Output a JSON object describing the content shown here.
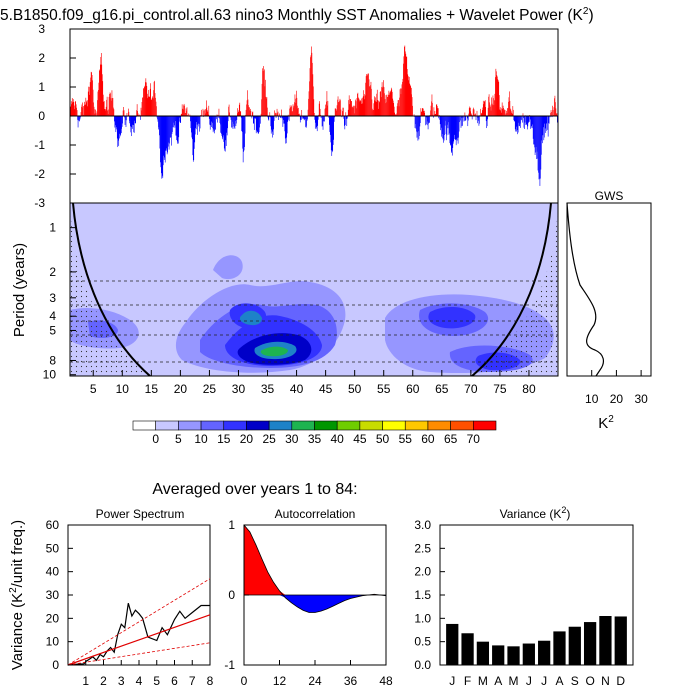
{
  "title": "5.B1850.f09_g16.pi_control.all.63 nino3 Monthly SST Anomalies + Wavelet Power (K",
  "title_sup": "2",
  "title_close": ")",
  "anomaly": {
    "yticks": [
      "3",
      "2",
      "1",
      "0",
      "-1",
      "-2",
      "-3"
    ],
    "ylim": [
      -3,
      3
    ],
    "pos_color": "#ff0000",
    "neg_color": "#0000ff"
  },
  "wavelet": {
    "ylabel": "Period (years)",
    "yticks": [
      "1",
      "2",
      "3",
      "4",
      "5",
      "8",
      "10"
    ],
    "xticks": [
      "5",
      "10",
      "15",
      "20",
      "25",
      "30",
      "35",
      "40",
      "45",
      "50",
      "55",
      "60",
      "65",
      "70",
      "75",
      "80"
    ],
    "xlim": [
      1,
      85
    ]
  },
  "gws": {
    "title": "GWS",
    "xticks": [
      "10",
      "20",
      "30"
    ],
    "xlabel": "K",
    "xlabel_sup": "2"
  },
  "colorbar": {
    "labels": [
      "0",
      "5",
      "10",
      "15",
      "20",
      "25",
      "30",
      "35",
      "40",
      "45",
      "50",
      "55",
      "60",
      "65",
      "70"
    ],
    "colors": [
      "#ffffff",
      "#c8c8ff",
      "#9696ff",
      "#6464ff",
      "#3232ff",
      "#0000c8",
      "#1e82c8",
      "#1eb450",
      "#009600",
      "#6ecd00",
      "#c8dc00",
      "#ffff00",
      "#ffc800",
      "#ff8c00",
      "#ff5000",
      "#ff0000"
    ]
  },
  "averaged_title": "Averaged over years 1 to 84:",
  "chart_data": [
    {
      "type": "line",
      "title": "Power Spectrum",
      "ylabel": "Variance (K",
      "ylabel_sup": "2",
      "ylabel_tail": "/unit freq.)",
      "yticks": [
        "0",
        "10",
        "20",
        "30",
        "40",
        "50",
        "60"
      ],
      "xticks": [
        "1",
        "2",
        "3",
        "4",
        "5",
        "6",
        "7",
        "8"
      ],
      "ylim": [
        0,
        60
      ],
      "xlim": [
        0,
        8
      ],
      "series": [
        {
          "values_x": [
            0,
            0.3,
            0.6,
            0.9,
            1.0,
            1.2,
            1.4,
            1.6,
            1.8,
            2.0,
            2.2,
            2.4,
            2.6,
            2.8,
            3.0,
            3.2,
            3.4,
            3.6,
            3.8,
            4.0,
            4.2,
            4.5,
            5.0,
            5.3,
            5.6,
            6.0,
            6.3,
            6.6,
            7.0,
            7.5,
            8.0
          ],
          "values_y": [
            0,
            0.2,
            0.4,
            0.5,
            1.5,
            2.5,
            3.5,
            2,
            4.5,
            3.5,
            6,
            7.5,
            5.5,
            13,
            17.5,
            16,
            26.5,
            21,
            23.5,
            22,
            20,
            12,
            10.5,
            16,
            13,
            19.5,
            23,
            20,
            22.5,
            25.5,
            25.5
          ]
        },
        {
          "values_x": [
            0,
            8
          ],
          "values_y": [
            0,
            21.5
          ]
        },
        {
          "values_x": [
            0,
            8
          ],
          "values_y": [
            0,
            37
          ]
        },
        {
          "values_x": [
            0,
            8
          ],
          "values_y": [
            0,
            9.5
          ]
        }
      ]
    },
    {
      "type": "area",
      "title": "Autocorrelation",
      "yticks": [
        "1",
        "0",
        "-1"
      ],
      "xticks": [
        "0",
        "12",
        "24",
        "36",
        "48"
      ],
      "ylim": [
        -1,
        1
      ],
      "xlim": [
        0,
        48
      ],
      "x": [
        0,
        2,
        4,
        6,
        8,
        10,
        12,
        14,
        16,
        18,
        20,
        22,
        24,
        26,
        28,
        30,
        32,
        34,
        36,
        38,
        40,
        42,
        44,
        46,
        48
      ],
      "values": [
        1.0,
        0.9,
        0.72,
        0.52,
        0.33,
        0.18,
        0.06,
        -0.04,
        -0.11,
        -0.17,
        -0.22,
        -0.25,
        -0.25,
        -0.23,
        -0.2,
        -0.16,
        -0.12,
        -0.08,
        -0.05,
        -0.03,
        -0.01,
        0.0,
        0.01,
        0.0,
        -0.01
      ]
    },
    {
      "type": "bar",
      "title": "Variance (K",
      "title_sup": "2",
      "title_close": ")",
      "categories": [
        "J",
        "F",
        "M",
        "A",
        "M",
        "J",
        "J",
        "A",
        "S",
        "O",
        "N",
        "D"
      ],
      "values": [
        0.88,
        0.68,
        0.5,
        0.42,
        0.4,
        0.46,
        0.52,
        0.72,
        0.82,
        0.92,
        1.05,
        1.04
      ],
      "yticks": [
        "0.0",
        "0.5",
        "1.0",
        "1.5",
        "2.0",
        "2.5",
        "3.0"
      ],
      "ylim": [
        0,
        3
      ]
    }
  ]
}
